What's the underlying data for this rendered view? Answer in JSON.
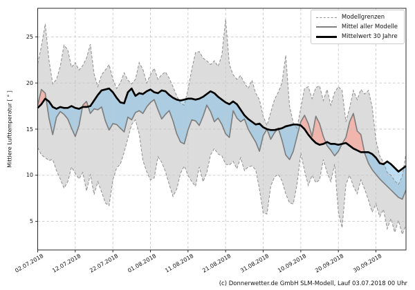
{
  "figure": {
    "caption": "(c) Donnerwetter.de GmbH SLM-Modell, Lauf 03.07.2018 00 Uhr"
  },
  "legend": {
    "items": [
      {
        "label": "Modellgrenzen",
        "style": "dashed-gray"
      },
      {
        "label": "Mittel aller Modelle",
        "style": "solid-gray"
      },
      {
        "label": "Mittelwert 30 Jahre",
        "style": "solid-black-bold"
      }
    ]
  },
  "chart_data": {
    "type": "line",
    "title": "",
    "xlabel": "",
    "ylabel": "Mittlere Lufttemperatur [ ° ]",
    "x_start_date": "02.07.2018",
    "x_step_days": 1,
    "xlim": [
      0,
      98
    ],
    "ylim": [
      1.9,
      28.1
    ],
    "grid": true,
    "legend_position": "upper right",
    "x_tick_days": [
      0,
      10,
      20,
      30,
      40,
      50,
      60,
      70,
      80,
      90
    ],
    "x_tick_labels": [
      "02.07.2018",
      "12.07.2018",
      "22.07.2018",
      "01.08.2018",
      "11.08.2018",
      "21.08.2018",
      "31.08.2018",
      "10.09.2018",
      "20.09.2018",
      "30.09.2018"
    ],
    "y_ticks": [
      5,
      10,
      15,
      20,
      25
    ],
    "series": [
      {
        "name": "Modellgrenzen (Obergrenze)",
        "style": "dashed",
        "color": "#949494",
        "values": [
          22.1,
          24.0,
          26.4,
          22.5,
          19.9,
          20.4,
          21.8,
          24.1,
          23.6,
          21.7,
          22.2,
          21.4,
          21.9,
          22.7,
          24.2,
          21.0,
          19.6,
          20.9,
          21.4,
          22.0,
          20.4,
          19.4,
          20.0,
          21.1,
          20.3,
          19.9,
          20.4,
          22.2,
          21.5,
          20.0,
          20.9,
          21.6,
          20.4,
          20.9,
          21.2,
          20.5,
          19.6,
          18.6,
          17.8,
          17.6,
          19.3,
          21.5,
          23.3,
          23.4,
          22.7,
          22.4,
          22.0,
          22.4,
          21.8,
          23.0,
          26.9,
          22.0,
          20.9,
          20.4,
          20.8,
          20.0,
          19.4,
          20.3,
          18.9,
          18.2,
          16.4,
          15.4,
          16.8,
          18.2,
          19.0,
          20.0,
          23.0,
          17.5,
          15.7,
          15.1,
          17.3,
          19.4,
          19.6,
          18.3,
          19.5,
          19.7,
          18.1,
          19.3,
          17.6,
          19.0,
          19.6,
          19.2,
          15.8,
          17.3,
          19.2,
          18.2,
          19.3,
          18.8,
          19.2,
          17.4,
          13.8,
          12.1,
          11.4,
          10.3,
          10.0,
          9.4,
          9.0,
          9.9,
          12.3
        ]
      },
      {
        "name": "Modellgrenzen (Untergrenze)",
        "style": "dashed",
        "color": "#949494",
        "values": [
          13.0,
          12.2,
          11.9,
          11.6,
          11.7,
          10.5,
          9.6,
          8.6,
          9.3,
          10.9,
          10.2,
          9.6,
          10.3,
          8.3,
          10.1,
          7.9,
          9.3,
          8.2,
          7.0,
          6.7,
          9.5,
          10.8,
          11.2,
          12.5,
          14.0,
          15.5,
          16.0,
          14.5,
          11.6,
          10.4,
          9.5,
          9.7,
          12.0,
          11.4,
          10.4,
          9.0,
          7.7,
          8.5,
          10.2,
          11.0,
          10.0,
          9.3,
          8.8,
          10.9,
          9.3,
          10.3,
          12.2,
          12.9,
          12.3,
          12.1,
          11.2,
          11.1,
          11.5,
          10.7,
          11.9,
          10.5,
          10.9,
          11.0,
          10.6,
          8.5,
          5.9,
          5.8,
          8.8,
          9.8,
          10.1,
          9.4,
          8.0,
          7.0,
          6.9,
          9.0,
          12.4,
          10.5,
          8.9,
          10.0,
          9.2,
          9.5,
          11.7,
          10.3,
          9.3,
          11.2,
          6.0,
          4.3,
          9.0,
          10.0,
          8.8,
          8.0,
          9.5,
          8.5,
          7.3,
          6.0,
          6.9,
          5.5,
          6.3,
          4.2,
          5.3,
          3.8,
          5.1,
          3.6,
          4.6
        ]
      },
      {
        "name": "Mittel aller Modelle",
        "style": "solid",
        "color": "#7f7f7f",
        "values": [
          17.6,
          19.3,
          18.9,
          16.2,
          14.4,
          16.3,
          16.9,
          16.6,
          16.1,
          15.1,
          14.2,
          15.4,
          17.6,
          18.0,
          16.7,
          17.2,
          17.1,
          17.4,
          15.9,
          14.9,
          15.6,
          15.5,
          15.1,
          14.7,
          16.3,
          16.0,
          16.8,
          17.0,
          16.7,
          17.4,
          17.9,
          18.2,
          17.1,
          16.1,
          16.6,
          17.0,
          15.9,
          14.5,
          13.6,
          13.4,
          14.9,
          16.0,
          15.9,
          15.4,
          16.4,
          17.6,
          16.9,
          15.8,
          16.2,
          15.5,
          14.5,
          14.1,
          17.0,
          16.2,
          15.8,
          16.1,
          15.0,
          14.3,
          13.6,
          12.6,
          14.3,
          15.0,
          13.9,
          14.6,
          15.1,
          13.8,
          12.2,
          11.7,
          12.6,
          14.2,
          15.8,
          16.5,
          15.6,
          14.2,
          16.4,
          15.6,
          14.2,
          13.2,
          12.7,
          12.1,
          12.6,
          13.4,
          14.1,
          15.8,
          16.7,
          14.8,
          14.4,
          12.4,
          11.3,
          10.6,
          10.1,
          9.6,
          9.2,
          8.8,
          8.4,
          8.0,
          7.6,
          7.4,
          8.4
        ]
      },
      {
        "name": "Mittelwert 30 Jahre",
        "style": "solid-bold",
        "color": "#000000",
        "values": [
          17.3,
          17.7,
          18.3,
          18.0,
          17.4,
          17.2,
          17.4,
          17.3,
          17.3,
          17.5,
          17.3,
          17.2,
          17.4,
          17.4,
          17.5,
          18.1,
          18.7,
          19.2,
          19.3,
          19.4,
          19.0,
          18.4,
          17.9,
          17.8,
          19.0,
          19.4,
          18.6,
          18.9,
          18.8,
          19.1,
          19.3,
          19.0,
          18.9,
          19.2,
          19.1,
          18.7,
          18.4,
          18.2,
          18.1,
          18.2,
          18.3,
          18.3,
          18.2,
          18.3,
          18.5,
          18.8,
          19.1,
          18.9,
          18.5,
          18.2,
          17.9,
          17.7,
          18.0,
          17.7,
          17.1,
          16.5,
          16.1,
          15.8,
          15.5,
          15.6,
          15.2,
          15.0,
          14.9,
          14.9,
          15.0,
          15.1,
          15.3,
          15.4,
          15.5,
          15.5,
          15.4,
          15.0,
          14.4,
          13.9,
          13.5,
          13.3,
          13.4,
          13.6,
          13.4,
          13.4,
          13.3,
          13.4,
          13.5,
          13.2,
          12.9,
          12.7,
          12.5,
          12.5,
          12.5,
          12.3,
          11.9,
          11.3,
          11.2,
          11.5,
          11.2,
          10.8,
          10.4,
          10.7,
          11.0
        ]
      }
    ],
    "fills": {
      "model_range_color": "#dcdcdc",
      "below_normal_color": "#7cbee6",
      "above_normal_color": "#fd9b8c"
    },
    "grid_color": "#c8c8c8",
    "frame_color": "#262626"
  }
}
